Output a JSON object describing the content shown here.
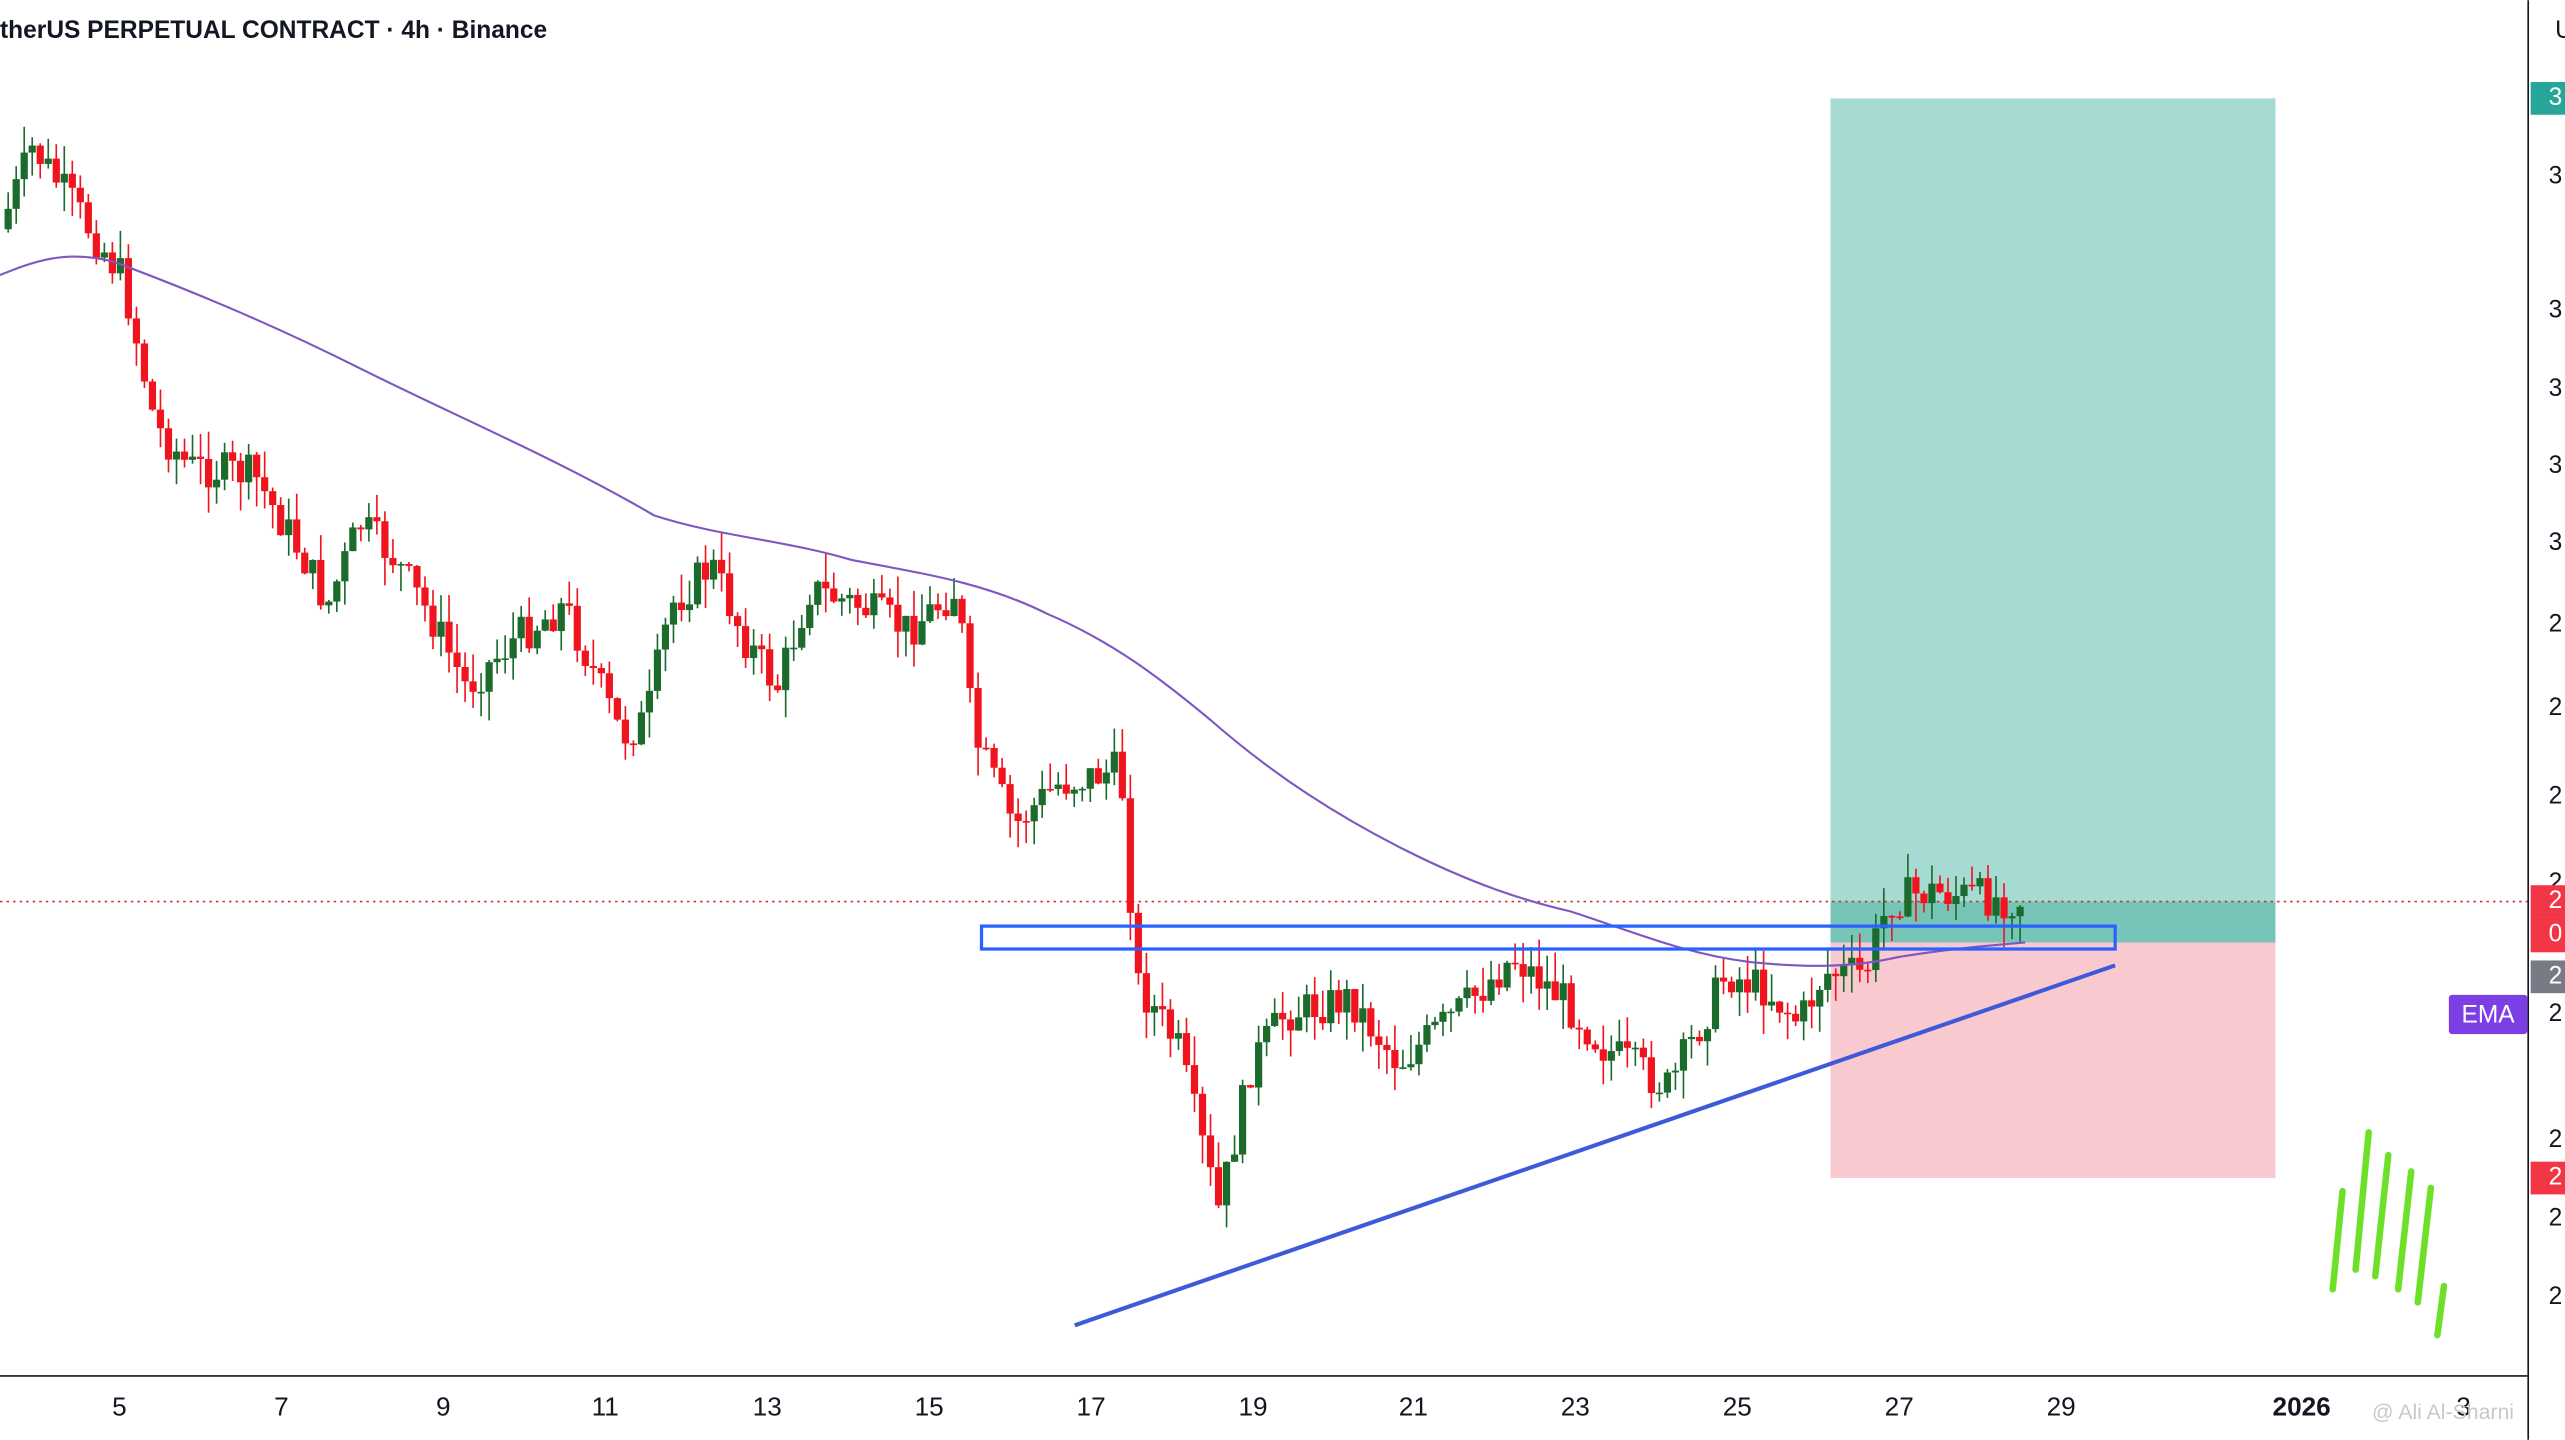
{
  "header": {
    "title": "therUS PERPETUAL CONTRACT · 4h · Binance",
    "corner": "U"
  },
  "x_axis": {
    "labels": [
      "5",
      "7",
      "9",
      "11",
      "13",
      "15",
      "17",
      "19",
      "21",
      "23",
      "25",
      "27",
      "29",
      "2026",
      "3"
    ]
  },
  "price_axis": {
    "labels": [
      "3",
      "3",
      "3",
      "3",
      "3",
      "2",
      "2",
      "2",
      "2",
      "2",
      "2",
      "2",
      "2"
    ],
    "badges": [
      "3",
      "2",
      "0",
      "2",
      "2"
    ]
  },
  "indicator": {
    "label": "EMA"
  },
  "watermark": "@ Ali Al-Sharni"
}
